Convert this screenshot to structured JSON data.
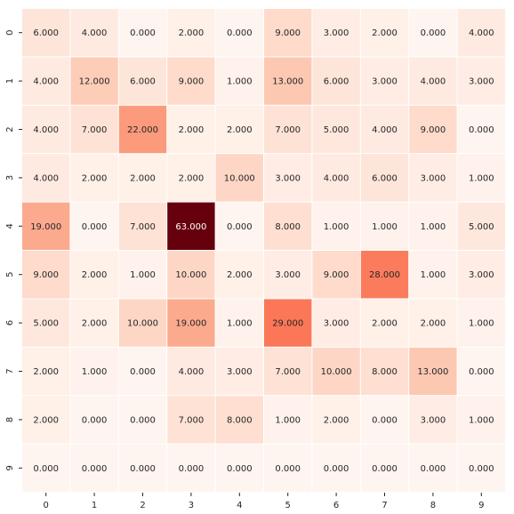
{
  "chart_data": {
    "type": "heatmap",
    "title": "",
    "xlabel": "",
    "ylabel": "",
    "x_labels": [
      "0",
      "1",
      "2",
      "3",
      "4",
      "5",
      "6",
      "7",
      "8",
      "9"
    ],
    "y_labels": [
      "0",
      "1",
      "2",
      "3",
      "4",
      "5",
      "6",
      "7",
      "8",
      "9"
    ],
    "values": [
      [
        6,
        4,
        0,
        2,
        0,
        9,
        3,
        2,
        0,
        4
      ],
      [
        4,
        12,
        6,
        9,
        1,
        13,
        6,
        3,
        4,
        3
      ],
      [
        4,
        7,
        22,
        2,
        2,
        7,
        5,
        4,
        9,
        0
      ],
      [
        4,
        2,
        2,
        2,
        10,
        3,
        4,
        6,
        3,
        1
      ],
      [
        19,
        0,
        7,
        63,
        0,
        8,
        1,
        1,
        1,
        5
      ],
      [
        9,
        2,
        1,
        10,
        2,
        3,
        9,
        28,
        1,
        3
      ],
      [
        5,
        2,
        10,
        19,
        1,
        29,
        3,
        2,
        2,
        1
      ],
      [
        2,
        1,
        0,
        4,
        3,
        7,
        10,
        8,
        13,
        0
      ],
      [
        2,
        0,
        0,
        7,
        8,
        1,
        2,
        0,
        3,
        1
      ],
      [
        0,
        0,
        0,
        0,
        0,
        0,
        0,
        0,
        0,
        0
      ]
    ],
    "value_format": "0.000",
    "colormap": "Reds",
    "vmin": 0,
    "vmax": 63,
    "grid_line_color": "#ffffff",
    "colorbar": false
  }
}
